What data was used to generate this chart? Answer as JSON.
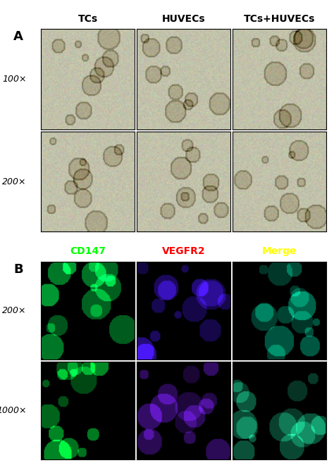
{
  "panel_A_label": "A",
  "panel_B_label": "B",
  "col_headers_A": [
    "TCs",
    "HUVECs",
    "TCs+HUVECs"
  ],
  "row_labels_A": [
    "100×",
    "200×"
  ],
  "col_headers_B": [
    "CD147",
    "VEGFR2",
    "Merge"
  ],
  "col_headers_B_colors": [
    "#00ff00",
    "#ff0000",
    "#ffff00"
  ],
  "row_labels_B": [
    "200×",
    "1000×"
  ],
  "bg_color": "#ffffff",
  "border_color": "#000000",
  "label_fontsize": 11,
  "header_fontsize": 10,
  "panel_label_fontsize": 13,
  "row_label_fontsize": 9,
  "figure_width": 4.74,
  "figure_height": 6.68
}
